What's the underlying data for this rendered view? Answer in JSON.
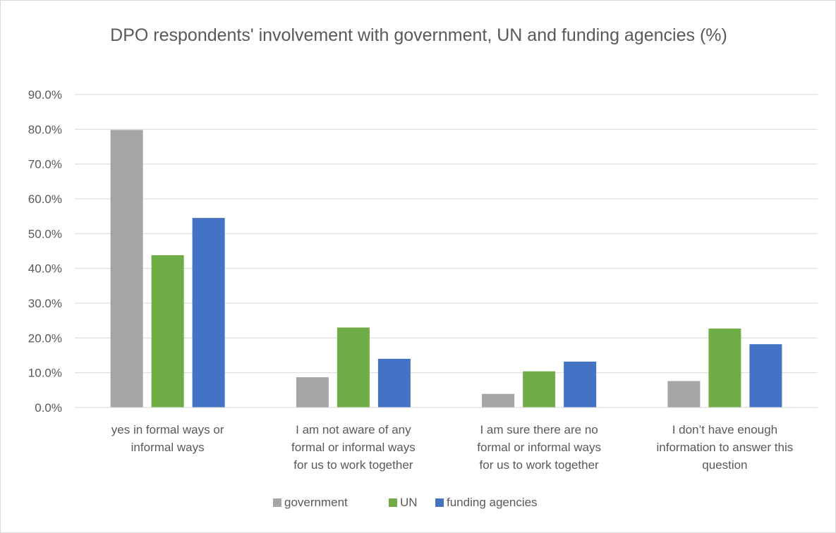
{
  "chart_data": {
    "type": "bar",
    "title": "DPO respondents' involvement with government, UN and funding agencies (%)",
    "categories": [
      [
        "yes in formal ways or",
        "informal ways"
      ],
      [
        "I am not aware of any",
        "formal or informal ways",
        "for us to work together"
      ],
      [
        "I am sure there are no",
        "formal or informal ways",
        "for us to work together"
      ],
      [
        "I don’t have enough",
        "information to answer this",
        "question"
      ]
    ],
    "series": [
      {
        "name": "government",
        "color": "#a5a5a5",
        "values": [
          79.8,
          8.7,
          3.9,
          7.6
        ]
      },
      {
        "name": "UN",
        "color": "#70ad47",
        "values": [
          43.8,
          23.0,
          10.4,
          22.7
        ]
      },
      {
        "name": "funding agencies",
        "color": "#4472c4",
        "values": [
          54.5,
          14.0,
          13.2,
          18.2
        ]
      }
    ],
    "ylim": [
      0,
      90
    ],
    "yticks": [
      "0.0%",
      "10.0%",
      "20.0%",
      "30.0%",
      "40.0%",
      "50.0%",
      "60.0%",
      "70.0%",
      "80.0%",
      "90.0%"
    ],
    "grid": true,
    "legend_position": "bottom"
  }
}
